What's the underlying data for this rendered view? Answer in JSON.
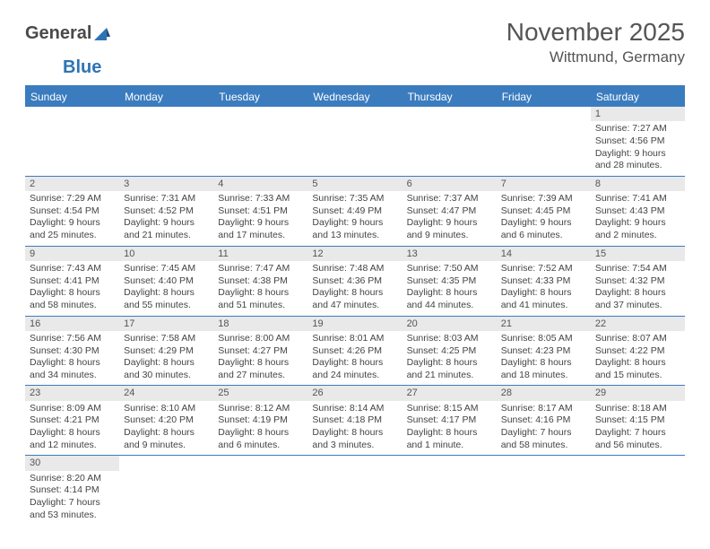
{
  "logo": {
    "part1": "General",
    "part2": "Blue"
  },
  "title": "November 2025",
  "location": "Wittmund, Germany",
  "colors": {
    "header_bg": "#3b7cbf",
    "header_fg": "#ffffff",
    "daynum_bg": "#e9e9e9",
    "border": "#3b7cbf",
    "text": "#444444"
  },
  "weekdays": [
    "Sunday",
    "Monday",
    "Tuesday",
    "Wednesday",
    "Thursday",
    "Friday",
    "Saturday"
  ],
  "weeks": [
    [
      {
        "n": "",
        "sr": "",
        "ss": "",
        "dl": ""
      },
      {
        "n": "",
        "sr": "",
        "ss": "",
        "dl": ""
      },
      {
        "n": "",
        "sr": "",
        "ss": "",
        "dl": ""
      },
      {
        "n": "",
        "sr": "",
        "ss": "",
        "dl": ""
      },
      {
        "n": "",
        "sr": "",
        "ss": "",
        "dl": ""
      },
      {
        "n": "",
        "sr": "",
        "ss": "",
        "dl": ""
      },
      {
        "n": "1",
        "sr": "Sunrise: 7:27 AM",
        "ss": "Sunset: 4:56 PM",
        "dl": "Daylight: 9 hours and 28 minutes."
      }
    ],
    [
      {
        "n": "2",
        "sr": "Sunrise: 7:29 AM",
        "ss": "Sunset: 4:54 PM",
        "dl": "Daylight: 9 hours and 25 minutes."
      },
      {
        "n": "3",
        "sr": "Sunrise: 7:31 AM",
        "ss": "Sunset: 4:52 PM",
        "dl": "Daylight: 9 hours and 21 minutes."
      },
      {
        "n": "4",
        "sr": "Sunrise: 7:33 AM",
        "ss": "Sunset: 4:51 PM",
        "dl": "Daylight: 9 hours and 17 minutes."
      },
      {
        "n": "5",
        "sr": "Sunrise: 7:35 AM",
        "ss": "Sunset: 4:49 PM",
        "dl": "Daylight: 9 hours and 13 minutes."
      },
      {
        "n": "6",
        "sr": "Sunrise: 7:37 AM",
        "ss": "Sunset: 4:47 PM",
        "dl": "Daylight: 9 hours and 9 minutes."
      },
      {
        "n": "7",
        "sr": "Sunrise: 7:39 AM",
        "ss": "Sunset: 4:45 PM",
        "dl": "Daylight: 9 hours and 6 minutes."
      },
      {
        "n": "8",
        "sr": "Sunrise: 7:41 AM",
        "ss": "Sunset: 4:43 PM",
        "dl": "Daylight: 9 hours and 2 minutes."
      }
    ],
    [
      {
        "n": "9",
        "sr": "Sunrise: 7:43 AM",
        "ss": "Sunset: 4:41 PM",
        "dl": "Daylight: 8 hours and 58 minutes."
      },
      {
        "n": "10",
        "sr": "Sunrise: 7:45 AM",
        "ss": "Sunset: 4:40 PM",
        "dl": "Daylight: 8 hours and 55 minutes."
      },
      {
        "n": "11",
        "sr": "Sunrise: 7:47 AM",
        "ss": "Sunset: 4:38 PM",
        "dl": "Daylight: 8 hours and 51 minutes."
      },
      {
        "n": "12",
        "sr": "Sunrise: 7:48 AM",
        "ss": "Sunset: 4:36 PM",
        "dl": "Daylight: 8 hours and 47 minutes."
      },
      {
        "n": "13",
        "sr": "Sunrise: 7:50 AM",
        "ss": "Sunset: 4:35 PM",
        "dl": "Daylight: 8 hours and 44 minutes."
      },
      {
        "n": "14",
        "sr": "Sunrise: 7:52 AM",
        "ss": "Sunset: 4:33 PM",
        "dl": "Daylight: 8 hours and 41 minutes."
      },
      {
        "n": "15",
        "sr": "Sunrise: 7:54 AM",
        "ss": "Sunset: 4:32 PM",
        "dl": "Daylight: 8 hours and 37 minutes."
      }
    ],
    [
      {
        "n": "16",
        "sr": "Sunrise: 7:56 AM",
        "ss": "Sunset: 4:30 PM",
        "dl": "Daylight: 8 hours and 34 minutes."
      },
      {
        "n": "17",
        "sr": "Sunrise: 7:58 AM",
        "ss": "Sunset: 4:29 PM",
        "dl": "Daylight: 8 hours and 30 minutes."
      },
      {
        "n": "18",
        "sr": "Sunrise: 8:00 AM",
        "ss": "Sunset: 4:27 PM",
        "dl": "Daylight: 8 hours and 27 minutes."
      },
      {
        "n": "19",
        "sr": "Sunrise: 8:01 AM",
        "ss": "Sunset: 4:26 PM",
        "dl": "Daylight: 8 hours and 24 minutes."
      },
      {
        "n": "20",
        "sr": "Sunrise: 8:03 AM",
        "ss": "Sunset: 4:25 PM",
        "dl": "Daylight: 8 hours and 21 minutes."
      },
      {
        "n": "21",
        "sr": "Sunrise: 8:05 AM",
        "ss": "Sunset: 4:23 PM",
        "dl": "Daylight: 8 hours and 18 minutes."
      },
      {
        "n": "22",
        "sr": "Sunrise: 8:07 AM",
        "ss": "Sunset: 4:22 PM",
        "dl": "Daylight: 8 hours and 15 minutes."
      }
    ],
    [
      {
        "n": "23",
        "sr": "Sunrise: 8:09 AM",
        "ss": "Sunset: 4:21 PM",
        "dl": "Daylight: 8 hours and 12 minutes."
      },
      {
        "n": "24",
        "sr": "Sunrise: 8:10 AM",
        "ss": "Sunset: 4:20 PM",
        "dl": "Daylight: 8 hours and 9 minutes."
      },
      {
        "n": "25",
        "sr": "Sunrise: 8:12 AM",
        "ss": "Sunset: 4:19 PM",
        "dl": "Daylight: 8 hours and 6 minutes."
      },
      {
        "n": "26",
        "sr": "Sunrise: 8:14 AM",
        "ss": "Sunset: 4:18 PM",
        "dl": "Daylight: 8 hours and 3 minutes."
      },
      {
        "n": "27",
        "sr": "Sunrise: 8:15 AM",
        "ss": "Sunset: 4:17 PM",
        "dl": "Daylight: 8 hours and 1 minute."
      },
      {
        "n": "28",
        "sr": "Sunrise: 8:17 AM",
        "ss": "Sunset: 4:16 PM",
        "dl": "Daylight: 7 hours and 58 minutes."
      },
      {
        "n": "29",
        "sr": "Sunrise: 8:18 AM",
        "ss": "Sunset: 4:15 PM",
        "dl": "Daylight: 7 hours and 56 minutes."
      }
    ],
    [
      {
        "n": "30",
        "sr": "Sunrise: 8:20 AM",
        "ss": "Sunset: 4:14 PM",
        "dl": "Daylight: 7 hours and 53 minutes."
      },
      {
        "n": "",
        "sr": "",
        "ss": "",
        "dl": ""
      },
      {
        "n": "",
        "sr": "",
        "ss": "",
        "dl": ""
      },
      {
        "n": "",
        "sr": "",
        "ss": "",
        "dl": ""
      },
      {
        "n": "",
        "sr": "",
        "ss": "",
        "dl": ""
      },
      {
        "n": "",
        "sr": "",
        "ss": "",
        "dl": ""
      },
      {
        "n": "",
        "sr": "",
        "ss": "",
        "dl": ""
      }
    ]
  ]
}
